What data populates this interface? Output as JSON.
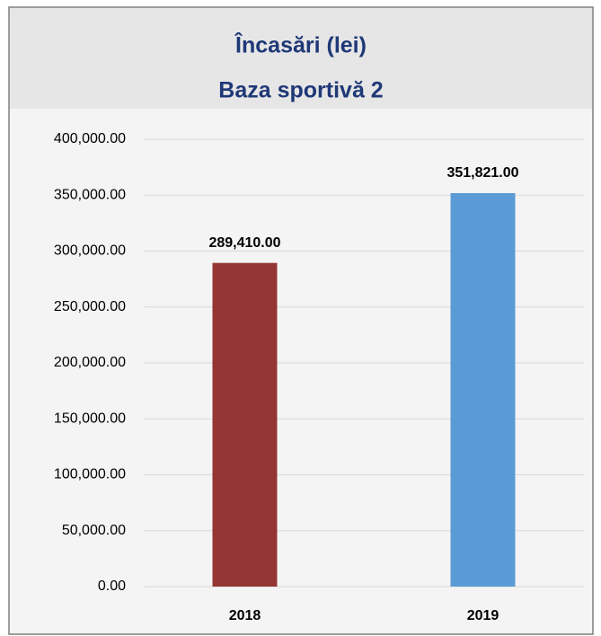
{
  "chart_data": {
    "type": "bar",
    "title": "Încasări (lei)",
    "subtitle": "Baza sportivă 2",
    "categories": [
      "2018",
      "2019"
    ],
    "values": [
      289410,
      351821
    ],
    "value_labels": [
      "289,410.00",
      "351,821.00"
    ],
    "colors": [
      "#943634",
      "#5b9bd5"
    ],
    "ylim": [
      0,
      400000
    ],
    "yticks": [
      {
        "value": 0,
        "label": "0.00"
      },
      {
        "value": 50000,
        "label": "50,000.00"
      },
      {
        "value": 100000,
        "label": "100,000.00"
      },
      {
        "value": 150000,
        "label": "150,000.00"
      },
      {
        "value": 200000,
        "label": "200,000.00"
      },
      {
        "value": 250000,
        "label": "250,000.00"
      },
      {
        "value": 300000,
        "label": "300,000.00"
      },
      {
        "value": 350000,
        "label": "350,000.00"
      },
      {
        "value": 400000,
        "label": "400,000.00"
      }
    ],
    "grid": true
  }
}
